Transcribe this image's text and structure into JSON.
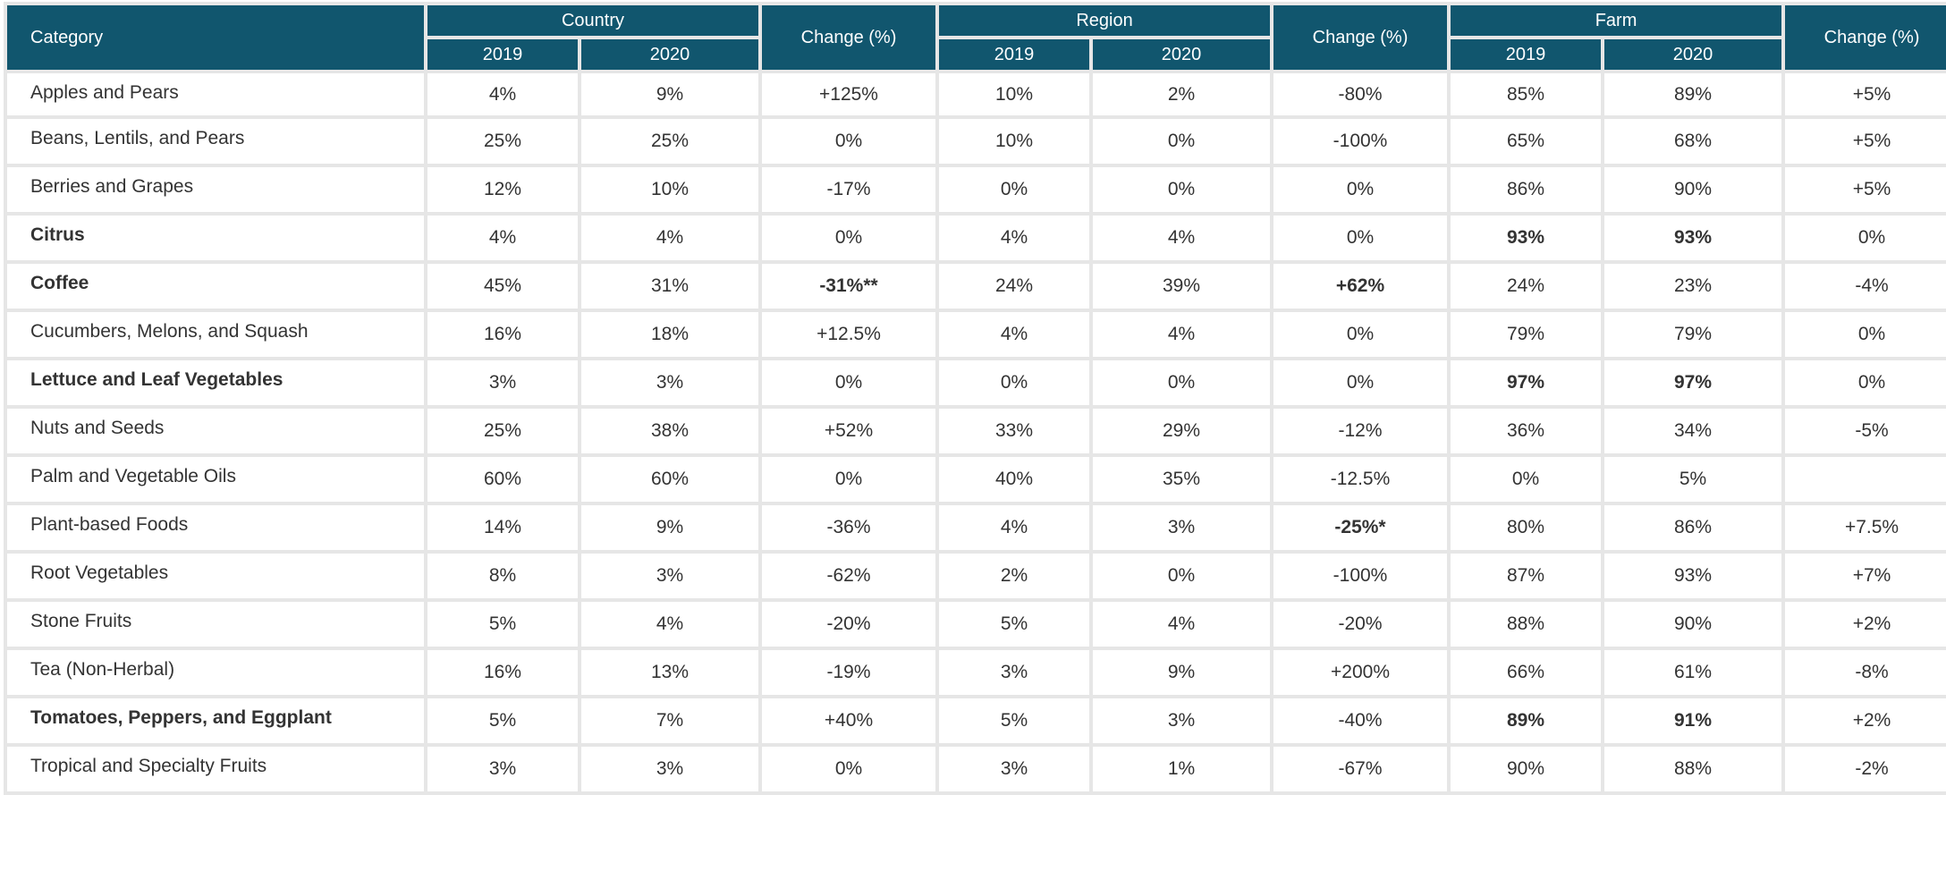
{
  "header": {
    "category": "Category",
    "groups": [
      {
        "label": "Country",
        "years": [
          "2019",
          "2020"
        ],
        "change": "Change (%)"
      },
      {
        "label": "Region",
        "years": [
          "2019",
          "2020"
        ],
        "change": "Change (%)"
      },
      {
        "label": "Farm",
        "years": [
          "2019",
          "2020"
        ],
        "change": "Change (%)"
      }
    ]
  },
  "rows": [
    {
      "category": "Apples and Pears",
      "bold": false,
      "cells": [
        "4%",
        "9%",
        "+125%",
        "10%",
        "2%",
        "-80%",
        "85%",
        "89%",
        "+5%"
      ],
      "bold_cells": []
    },
    {
      "category": "Beans, Lentils, and Pears",
      "bold": false,
      "cells": [
        "25%",
        "25%",
        "0%",
        "10%",
        "0%",
        "-100%",
        "65%",
        "68%",
        "+5%"
      ],
      "bold_cells": []
    },
    {
      "category": "Berries and Grapes",
      "bold": false,
      "cells": [
        "12%",
        "10%",
        "-17%",
        "0%",
        "0%",
        "0%",
        "86%",
        "90%",
        "+5%"
      ],
      "bold_cells": []
    },
    {
      "category": "Citrus",
      "bold": true,
      "cells": [
        "4%",
        "4%",
        "0%",
        "4%",
        "4%",
        "0%",
        "93%",
        "93%",
        "0%"
      ],
      "bold_cells": [
        6,
        7
      ]
    },
    {
      "category": "Coffee",
      "bold": true,
      "cells": [
        "45%",
        "31%",
        "-31%**",
        "24%",
        "39%",
        "+62%",
        "24%",
        "23%",
        "-4%"
      ],
      "bold_cells": [
        2,
        5
      ]
    },
    {
      "category": "Cucumbers, Melons, and Squash",
      "bold": false,
      "cells": [
        "16%",
        "18%",
        "+12.5%",
        "4%",
        "4%",
        "0%",
        "79%",
        "79%",
        "0%"
      ],
      "bold_cells": []
    },
    {
      "category": "Lettuce and Leaf Vegetables",
      "bold": true,
      "cells": [
        "3%",
        "3%",
        "0%",
        "0%",
        "0%",
        "0%",
        "97%",
        "97%",
        "0%"
      ],
      "bold_cells": [
        6,
        7
      ]
    },
    {
      "category": "Nuts and Seeds",
      "bold": false,
      "cells": [
        "25%",
        "38%",
        "+52%",
        "33%",
        "29%",
        "-12%",
        "36%",
        "34%",
        "-5%"
      ],
      "bold_cells": []
    },
    {
      "category": "Palm and Vegetable Oils",
      "bold": false,
      "cells": [
        "60%",
        "60%",
        "0%",
        "40%",
        "35%",
        "-12.5%",
        "0%",
        "5%",
        ""
      ],
      "bold_cells": []
    },
    {
      "category": "Plant-based Foods",
      "bold": false,
      "cells": [
        "14%",
        "9%",
        "-36%",
        "4%",
        "3%",
        "-25%*",
        "80%",
        "86%",
        "+7.5%"
      ],
      "bold_cells": [
        5
      ]
    },
    {
      "category": "Root Vegetables",
      "bold": false,
      "cells": [
        "8%",
        "3%",
        "-62%",
        "2%",
        "0%",
        "-100%",
        "87%",
        "93%",
        "+7%"
      ],
      "bold_cells": []
    },
    {
      "category": "Stone Fruits",
      "bold": false,
      "cells": [
        "5%",
        "4%",
        "-20%",
        "5%",
        "4%",
        "-20%",
        "88%",
        "90%",
        "+2%"
      ],
      "bold_cells": []
    },
    {
      "category": "Tea (Non-Herbal)",
      "bold": false,
      "cells": [
        "16%",
        "13%",
        "-19%",
        "3%",
        "9%",
        "+200%",
        "66%",
        "61%",
        "-8%"
      ],
      "bold_cells": []
    },
    {
      "category": "Tomatoes, Peppers, and Eggplant",
      "bold": true,
      "cells": [
        "5%",
        "7%",
        "+40%",
        "5%",
        "3%",
        "-40%",
        "89%",
        "91%",
        "+2%"
      ],
      "bold_cells": [
        6,
        7
      ]
    },
    {
      "category": "Tropical and Specialty Fruits",
      "bold": false,
      "cells": [
        "3%",
        "3%",
        "0%",
        "3%",
        "1%",
        "-67%",
        "90%",
        "88%",
        "-2%"
      ],
      "bold_cells": []
    }
  ]
}
